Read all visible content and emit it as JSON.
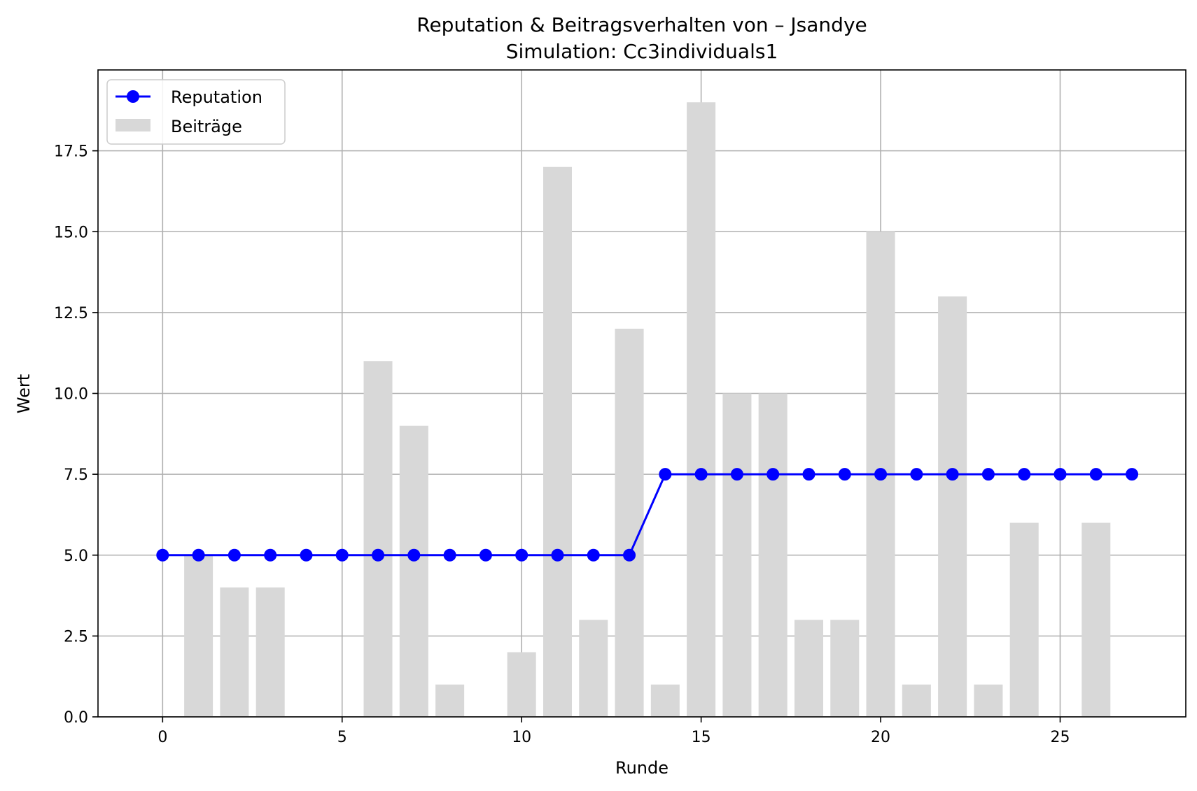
{
  "chart_data": {
    "type": "bar",
    "title": "Reputation & Beitragsverhalten von – Jsandye",
    "subtitle": "Simulation: Cc3individuals1",
    "xlabel": "Runde",
    "ylabel": "Wert",
    "xlim": [
      -1.8,
      28.5
    ],
    "ylim": [
      0,
      20
    ],
    "x_ticks": [
      0,
      5,
      10,
      15,
      20,
      25
    ],
    "y_ticks": [
      0.0,
      2.5,
      5.0,
      7.5,
      10.0,
      12.5,
      15.0,
      17.5
    ],
    "x_tick_labels": [
      "0",
      "5",
      "10",
      "15",
      "20",
      "25"
    ],
    "y_tick_labels": [
      "0.0",
      "2.5",
      "5.0",
      "7.5",
      "10.0",
      "12.5",
      "15.0",
      "17.5"
    ],
    "grid": true,
    "legend_position": "top-left",
    "series": [
      {
        "name": "Reputation",
        "kind": "line",
        "color": "#0000ff",
        "x": [
          0,
          1,
          2,
          3,
          4,
          5,
          6,
          7,
          8,
          9,
          10,
          11,
          12,
          13,
          14,
          15,
          16,
          17,
          18,
          19,
          20,
          21,
          22,
          23,
          24,
          25,
          26,
          27
        ],
        "values": [
          5,
          5,
          5,
          5,
          5,
          5,
          5,
          5,
          5,
          5,
          5,
          5,
          5,
          5,
          7.5,
          7.5,
          7.5,
          7.5,
          7.5,
          7.5,
          7.5,
          7.5,
          7.5,
          7.5,
          7.5,
          7.5,
          7.5,
          7.5
        ]
      },
      {
        "name": "Beiträge",
        "kind": "bar",
        "color": "#d8d8d8",
        "x": [
          0,
          1,
          2,
          3,
          4,
          5,
          6,
          7,
          8,
          9,
          10,
          11,
          12,
          13,
          14,
          15,
          16,
          17,
          18,
          19,
          20,
          21,
          22,
          23,
          24,
          25,
          26,
          27
        ],
        "values": [
          0,
          5,
          4,
          4,
          0,
          0,
          11,
          9,
          1,
          0,
          2,
          17,
          3,
          12,
          1,
          19,
          10,
          10,
          3,
          3,
          15,
          1,
          13,
          1,
          6,
          0,
          6,
          0
        ]
      }
    ]
  }
}
